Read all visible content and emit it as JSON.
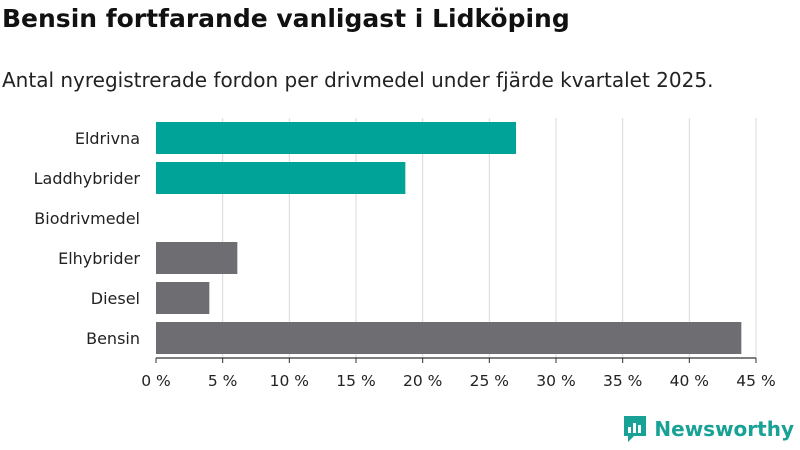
{
  "header": {
    "title": "Bensin fortfarande vanligast i Lidköping",
    "subtitle": "Antal nyregistrerade fordon per drivmedel under fjärde kvartalet 2025."
  },
  "brand": {
    "name": "Newsworthy",
    "color": "#18a195"
  },
  "colors": {
    "highlight": "#00a398",
    "default": "#6e6d72",
    "grid": "#d9d9d9",
    "axis": "#333333"
  },
  "chart_data": {
    "type": "bar",
    "orientation": "horizontal",
    "categories": [
      "Eldrivna",
      "Laddhybrider",
      "Biodrivmedel",
      "Elhybrider",
      "Diesel",
      "Bensin"
    ],
    "values": [
      27,
      18.7,
      0,
      6.1,
      4,
      43.9
    ],
    "series_colors": [
      "#00a398",
      "#00a398",
      "#6e6d72",
      "#6e6d72",
      "#6e6d72",
      "#6e6d72"
    ],
    "xlim": [
      0,
      45
    ],
    "xticks": [
      0,
      5,
      10,
      15,
      20,
      25,
      30,
      35,
      40,
      45
    ],
    "xtick_labels": [
      "0 %",
      "5 %",
      "10 %",
      "15 %",
      "20 %",
      "25 %",
      "30 %",
      "35 %",
      "40 %",
      "45 %"
    ],
    "grid": true,
    "unit": "%"
  }
}
